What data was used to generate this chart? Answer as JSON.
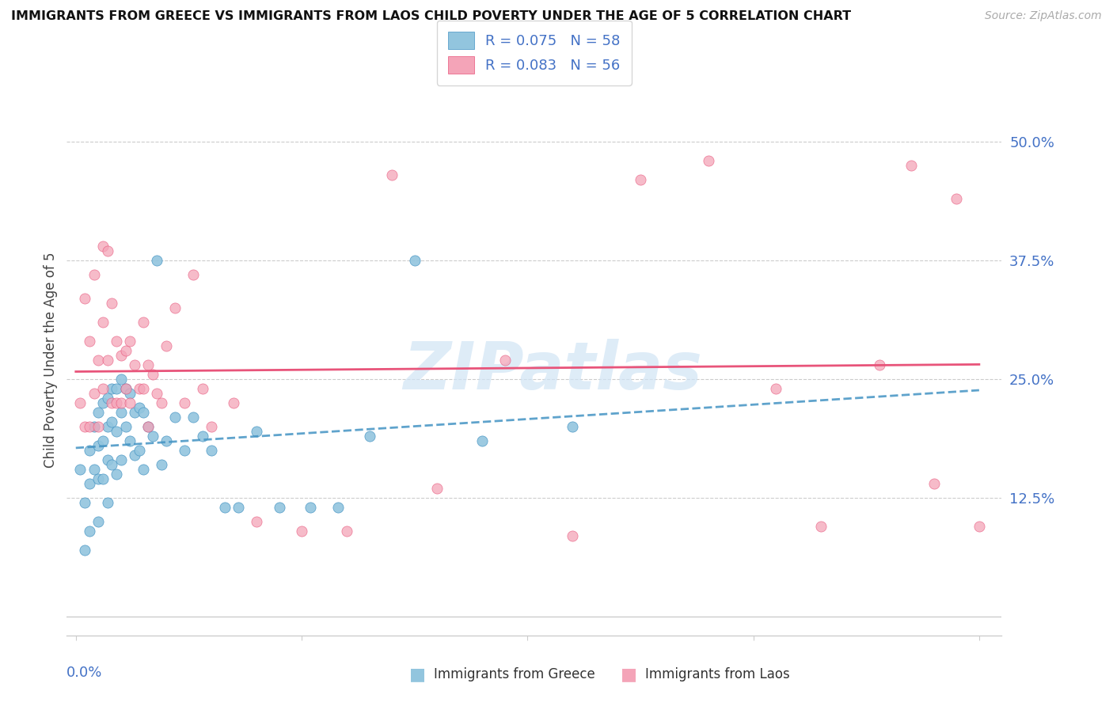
{
  "title": "IMMIGRANTS FROM GREECE VS IMMIGRANTS FROM LAOS CHILD POVERTY UNDER THE AGE OF 5 CORRELATION CHART",
  "source": "Source: ZipAtlas.com",
  "ylabel": "Child Poverty Under the Age of 5",
  "ytick_labels": [
    "50.0%",
    "37.5%",
    "25.0%",
    "12.5%"
  ],
  "ytick_values": [
    0.5,
    0.375,
    0.25,
    0.125
  ],
  "ylim": [
    -0.02,
    0.56
  ],
  "xlim": [
    -0.002,
    0.205
  ],
  "watermark": "ZIPatlas",
  "greece_color": "#92c5de",
  "greece_line_color": "#4393c3",
  "laos_color": "#f4a4b8",
  "laos_line_color": "#e8547a",
  "greece_scatter_x": [
    0.001,
    0.002,
    0.002,
    0.003,
    0.003,
    0.003,
    0.004,
    0.004,
    0.005,
    0.005,
    0.005,
    0.005,
    0.006,
    0.006,
    0.006,
    0.007,
    0.007,
    0.007,
    0.007,
    0.008,
    0.008,
    0.008,
    0.009,
    0.009,
    0.009,
    0.01,
    0.01,
    0.01,
    0.011,
    0.011,
    0.012,
    0.012,
    0.013,
    0.013,
    0.014,
    0.014,
    0.015,
    0.015,
    0.016,
    0.017,
    0.018,
    0.019,
    0.02,
    0.022,
    0.024,
    0.026,
    0.028,
    0.03,
    0.033,
    0.036,
    0.04,
    0.045,
    0.052,
    0.058,
    0.065,
    0.075,
    0.09,
    0.11
  ],
  "greece_scatter_y": [
    0.155,
    0.12,
    0.07,
    0.175,
    0.14,
    0.09,
    0.2,
    0.155,
    0.215,
    0.18,
    0.145,
    0.1,
    0.225,
    0.185,
    0.145,
    0.23,
    0.2,
    0.165,
    0.12,
    0.24,
    0.205,
    0.16,
    0.24,
    0.195,
    0.15,
    0.25,
    0.215,
    0.165,
    0.24,
    0.2,
    0.235,
    0.185,
    0.215,
    0.17,
    0.22,
    0.175,
    0.215,
    0.155,
    0.2,
    0.19,
    0.375,
    0.16,
    0.185,
    0.21,
    0.175,
    0.21,
    0.19,
    0.175,
    0.115,
    0.115,
    0.195,
    0.115,
    0.115,
    0.115,
    0.19,
    0.375,
    0.185,
    0.2
  ],
  "laos_scatter_x": [
    0.001,
    0.002,
    0.002,
    0.003,
    0.003,
    0.004,
    0.004,
    0.005,
    0.005,
    0.006,
    0.006,
    0.006,
    0.007,
    0.007,
    0.008,
    0.008,
    0.009,
    0.009,
    0.01,
    0.01,
    0.011,
    0.011,
    0.012,
    0.012,
    0.013,
    0.014,
    0.015,
    0.015,
    0.016,
    0.016,
    0.017,
    0.018,
    0.019,
    0.02,
    0.022,
    0.024,
    0.026,
    0.028,
    0.03,
    0.035,
    0.04,
    0.05,
    0.06,
    0.07,
    0.08,
    0.095,
    0.11,
    0.125,
    0.14,
    0.155,
    0.165,
    0.178,
    0.185,
    0.19,
    0.195,
    0.2
  ],
  "laos_scatter_y": [
    0.225,
    0.335,
    0.2,
    0.29,
    0.2,
    0.36,
    0.235,
    0.27,
    0.2,
    0.39,
    0.31,
    0.24,
    0.385,
    0.27,
    0.33,
    0.225,
    0.29,
    0.225,
    0.275,
    0.225,
    0.28,
    0.24,
    0.29,
    0.225,
    0.265,
    0.24,
    0.31,
    0.24,
    0.265,
    0.2,
    0.255,
    0.235,
    0.225,
    0.285,
    0.325,
    0.225,
    0.36,
    0.24,
    0.2,
    0.225,
    0.1,
    0.09,
    0.09,
    0.465,
    0.135,
    0.27,
    0.085,
    0.46,
    0.48,
    0.24,
    0.095,
    0.265,
    0.475,
    0.14,
    0.44,
    0.095
  ],
  "greece_reg": [
    0.165,
    0.185
  ],
  "laos_reg": [
    0.215,
    0.275
  ]
}
